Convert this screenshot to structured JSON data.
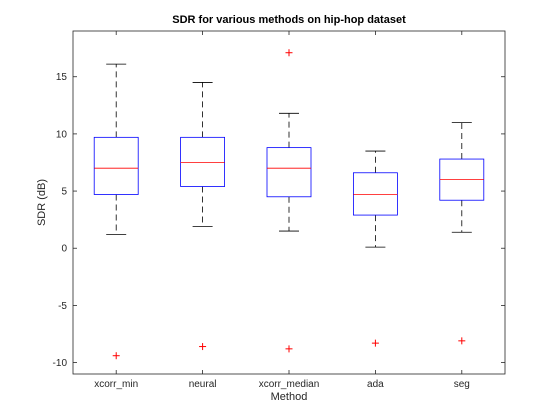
{
  "chart_data": {
    "type": "box",
    "title": "SDR for various methods on hip-hop dataset",
    "xlabel": "Method",
    "ylabel": "SDR (dB)",
    "ylim": [
      -11,
      19
    ],
    "yticks": [
      -10,
      -5,
      0,
      5,
      10,
      15
    ],
    "grid": false,
    "categories": [
      "xcorr_min",
      "neural",
      "xcorr_median",
      "ada",
      "seg"
    ],
    "boxes": [
      {
        "whisker_low": 1.2,
        "q1": 4.7,
        "median": 7.0,
        "q3": 9.7,
        "whisker_high": 16.1,
        "outliers": [
          -9.4
        ]
      },
      {
        "whisker_low": 1.9,
        "q1": 5.4,
        "median": 7.5,
        "q3": 9.7,
        "whisker_high": 14.5,
        "outliers": [
          -8.6
        ]
      },
      {
        "whisker_low": 1.5,
        "q1": 4.5,
        "median": 7.0,
        "q3": 8.8,
        "whisker_high": 11.8,
        "outliers": [
          17.1,
          -8.8
        ]
      },
      {
        "whisker_low": 0.1,
        "q1": 2.9,
        "median": 4.7,
        "q3": 6.6,
        "whisker_high": 8.5,
        "outliers": [
          -8.3
        ]
      },
      {
        "whisker_low": 1.4,
        "q1": 4.2,
        "median": 6.0,
        "q3": 7.8,
        "whisker_high": 11.0,
        "outliers": [
          -8.1
        ]
      }
    ],
    "colors": {
      "box": "#0000ff",
      "median": "#ff0000",
      "whisker": "#000000",
      "outlier": "#ff0000",
      "axis": "#262626"
    }
  }
}
